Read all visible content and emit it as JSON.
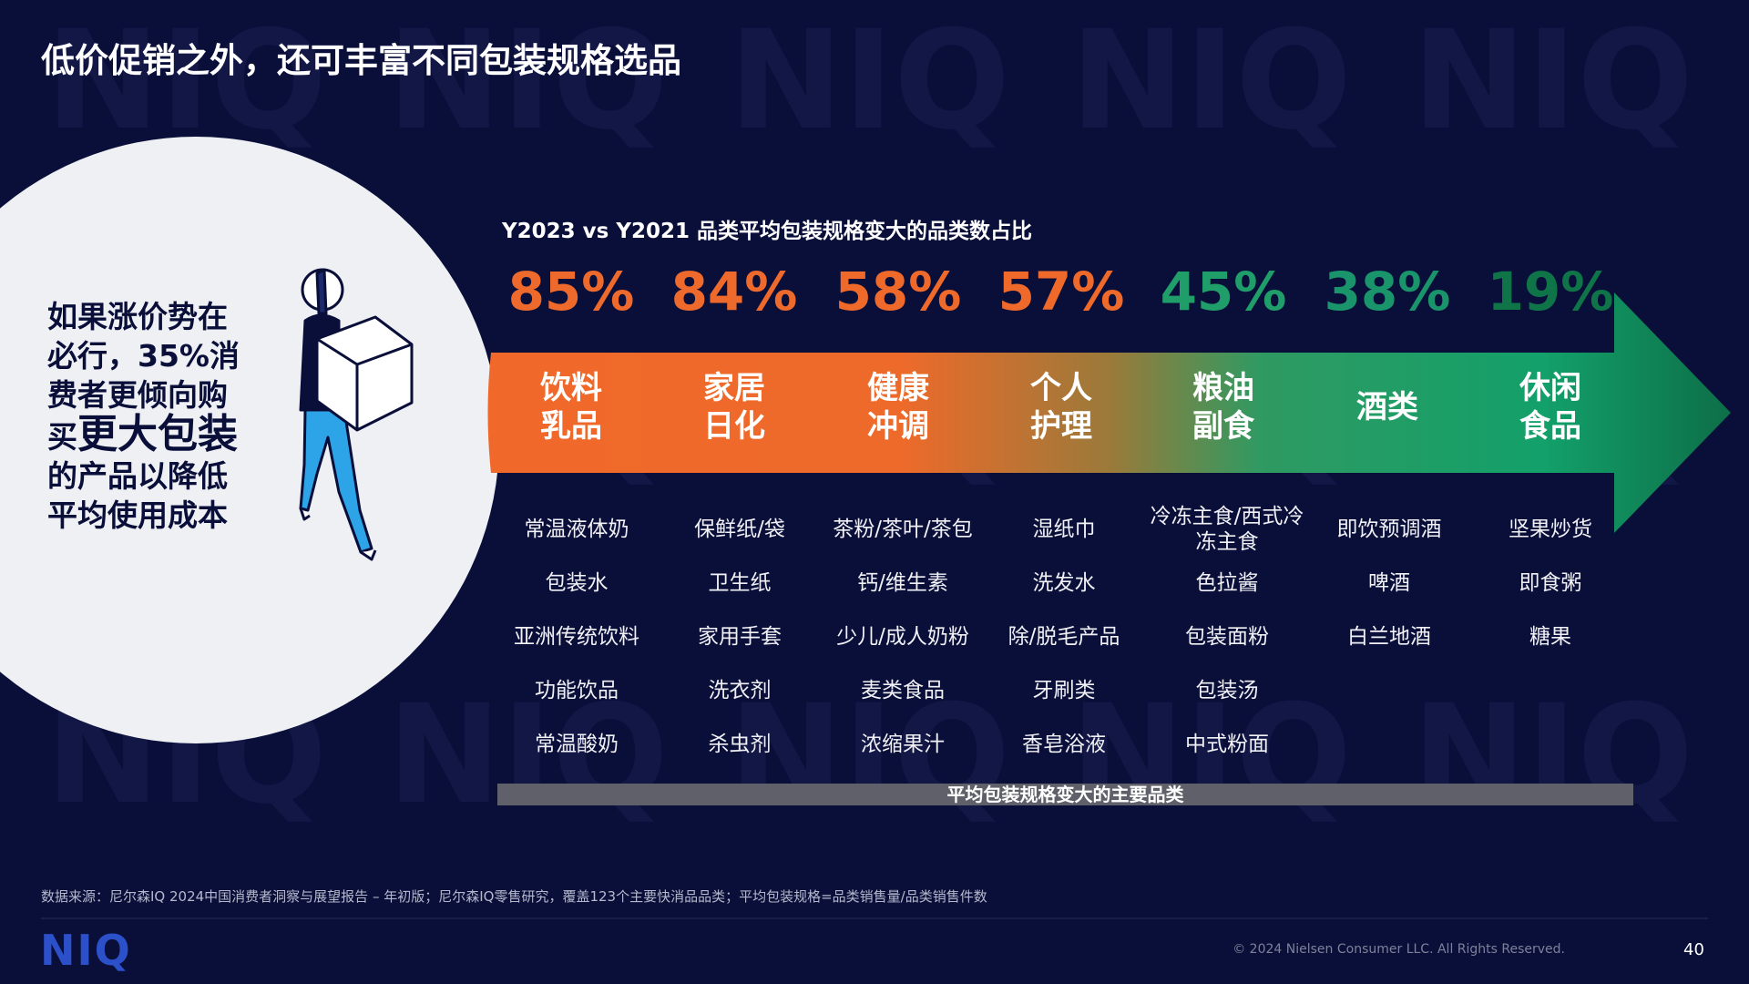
{
  "header": {
    "title": "低价促销之外，还可丰富不同包装规格选品"
  },
  "callout": {
    "lines_top": [
      "如果涨价势在",
      "必行，35%消",
      "费者更倾向购"
    ],
    "emphasis_pre": "买",
    "emphasis": "更大包装",
    "lines_bottom": [
      "的产品以降低",
      "平均使用成本"
    ]
  },
  "panel": {
    "subtitle": "Y2023 vs Y2021 品类平均包装规格变大的品类数占比",
    "columns": [
      {
        "percent": "85%",
        "category": [
          "饮料",
          "乳品"
        ],
        "items": [
          "常温液体奶",
          "包装水",
          "亚洲传统饮料",
          "功能饮品",
          "常温酸奶"
        ]
      },
      {
        "percent": "84%",
        "category": [
          "家居",
          "日化"
        ],
        "items": [
          "保鲜纸/袋",
          "卫生纸",
          "家用手套",
          "洗衣剂",
          "杀虫剂"
        ]
      },
      {
        "percent": "58%",
        "category": [
          "健康",
          "冲调"
        ],
        "items": [
          "茶粉/茶叶/茶包",
          "钙/维生素",
          "少儿/成人奶粉",
          "麦类食品",
          "浓缩果汁"
        ]
      },
      {
        "percent": "57%",
        "category": [
          "个人",
          "护理"
        ],
        "items": [
          "湿纸巾",
          "洗发水",
          "除/脱毛产品",
          "牙刷类",
          "香皂浴液"
        ]
      },
      {
        "percent": "45%",
        "category": [
          "粮油",
          "副食"
        ],
        "items": [
          "冷冻主食/西式冷冻主食",
          "色拉酱",
          "包装面粉",
          "包装汤",
          "中式粉面"
        ]
      },
      {
        "percent": "38%",
        "category": [
          "酒类"
        ],
        "items": [
          "即饮预调酒",
          "啤酒",
          "白兰地酒"
        ]
      },
      {
        "percent": "19%",
        "category": [
          "休闲",
          "食品"
        ],
        "items": [
          "坚果炒货",
          "即食粥",
          "糖果"
        ]
      }
    ],
    "bar_label": "平均包装规格变大的主要品类"
  },
  "footer": {
    "source": "数据来源：尼尔森IQ 2024中国消费者洞察与展望报告 – 年初版；尼尔森IQ零售研究，覆盖123个主要快消品品类；平均包装规格=品类销售量/品类销售件数",
    "logo": "NIQ",
    "copyright": "© 2024 Nielsen Consumer LLC. All Rights Reserved.",
    "page_number": "40"
  }
}
